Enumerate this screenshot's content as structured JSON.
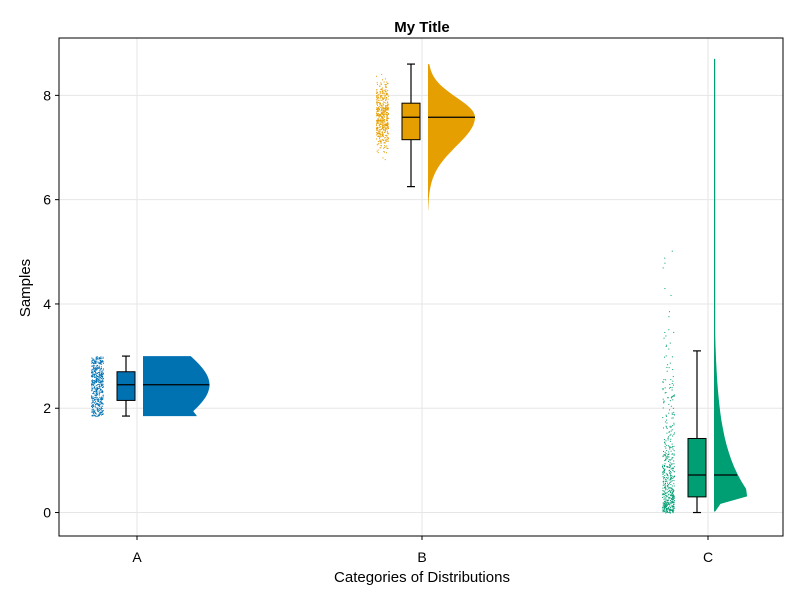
{
  "chart_data": {
    "type": "raincloud",
    "title": "My Title",
    "xlabel": "Categories of Distributions",
    "ylabel": "Samples",
    "ylim": [
      -0.45,
      9.1
    ],
    "yticks": [
      0,
      2,
      4,
      6,
      8
    ],
    "grid": true,
    "categories": [
      "A",
      "B",
      "C"
    ],
    "series": [
      {
        "category": "A",
        "color": "#0072b2",
        "box": {
          "min": 1.85,
          "q1": 2.15,
          "median": 2.45,
          "q3": 2.7,
          "max": 3.0
        },
        "cloud_range": [
          1.85,
          3.0
        ],
        "cloud_peak": 2.45,
        "rain_range": [
          1.85,
          3.0
        ]
      },
      {
        "category": "B",
        "color": "#e69f00",
        "box": {
          "min": 6.25,
          "q1": 7.15,
          "median": 7.58,
          "q3": 7.85,
          "max": 8.6
        },
        "cloud_range": [
          5.8,
          8.6
        ],
        "cloud_peak": 7.58,
        "rain_range": [
          5.8,
          8.6
        ]
      },
      {
        "category": "C",
        "color": "#009e73",
        "box": {
          "min": 0.0,
          "q1": 0.3,
          "median": 0.72,
          "q3": 1.42,
          "max": 3.1
        },
        "cloud_range": [
          0.02,
          8.7
        ],
        "cloud_peak": 0.35,
        "rain_range": [
          0.0,
          8.7
        ]
      }
    ]
  }
}
